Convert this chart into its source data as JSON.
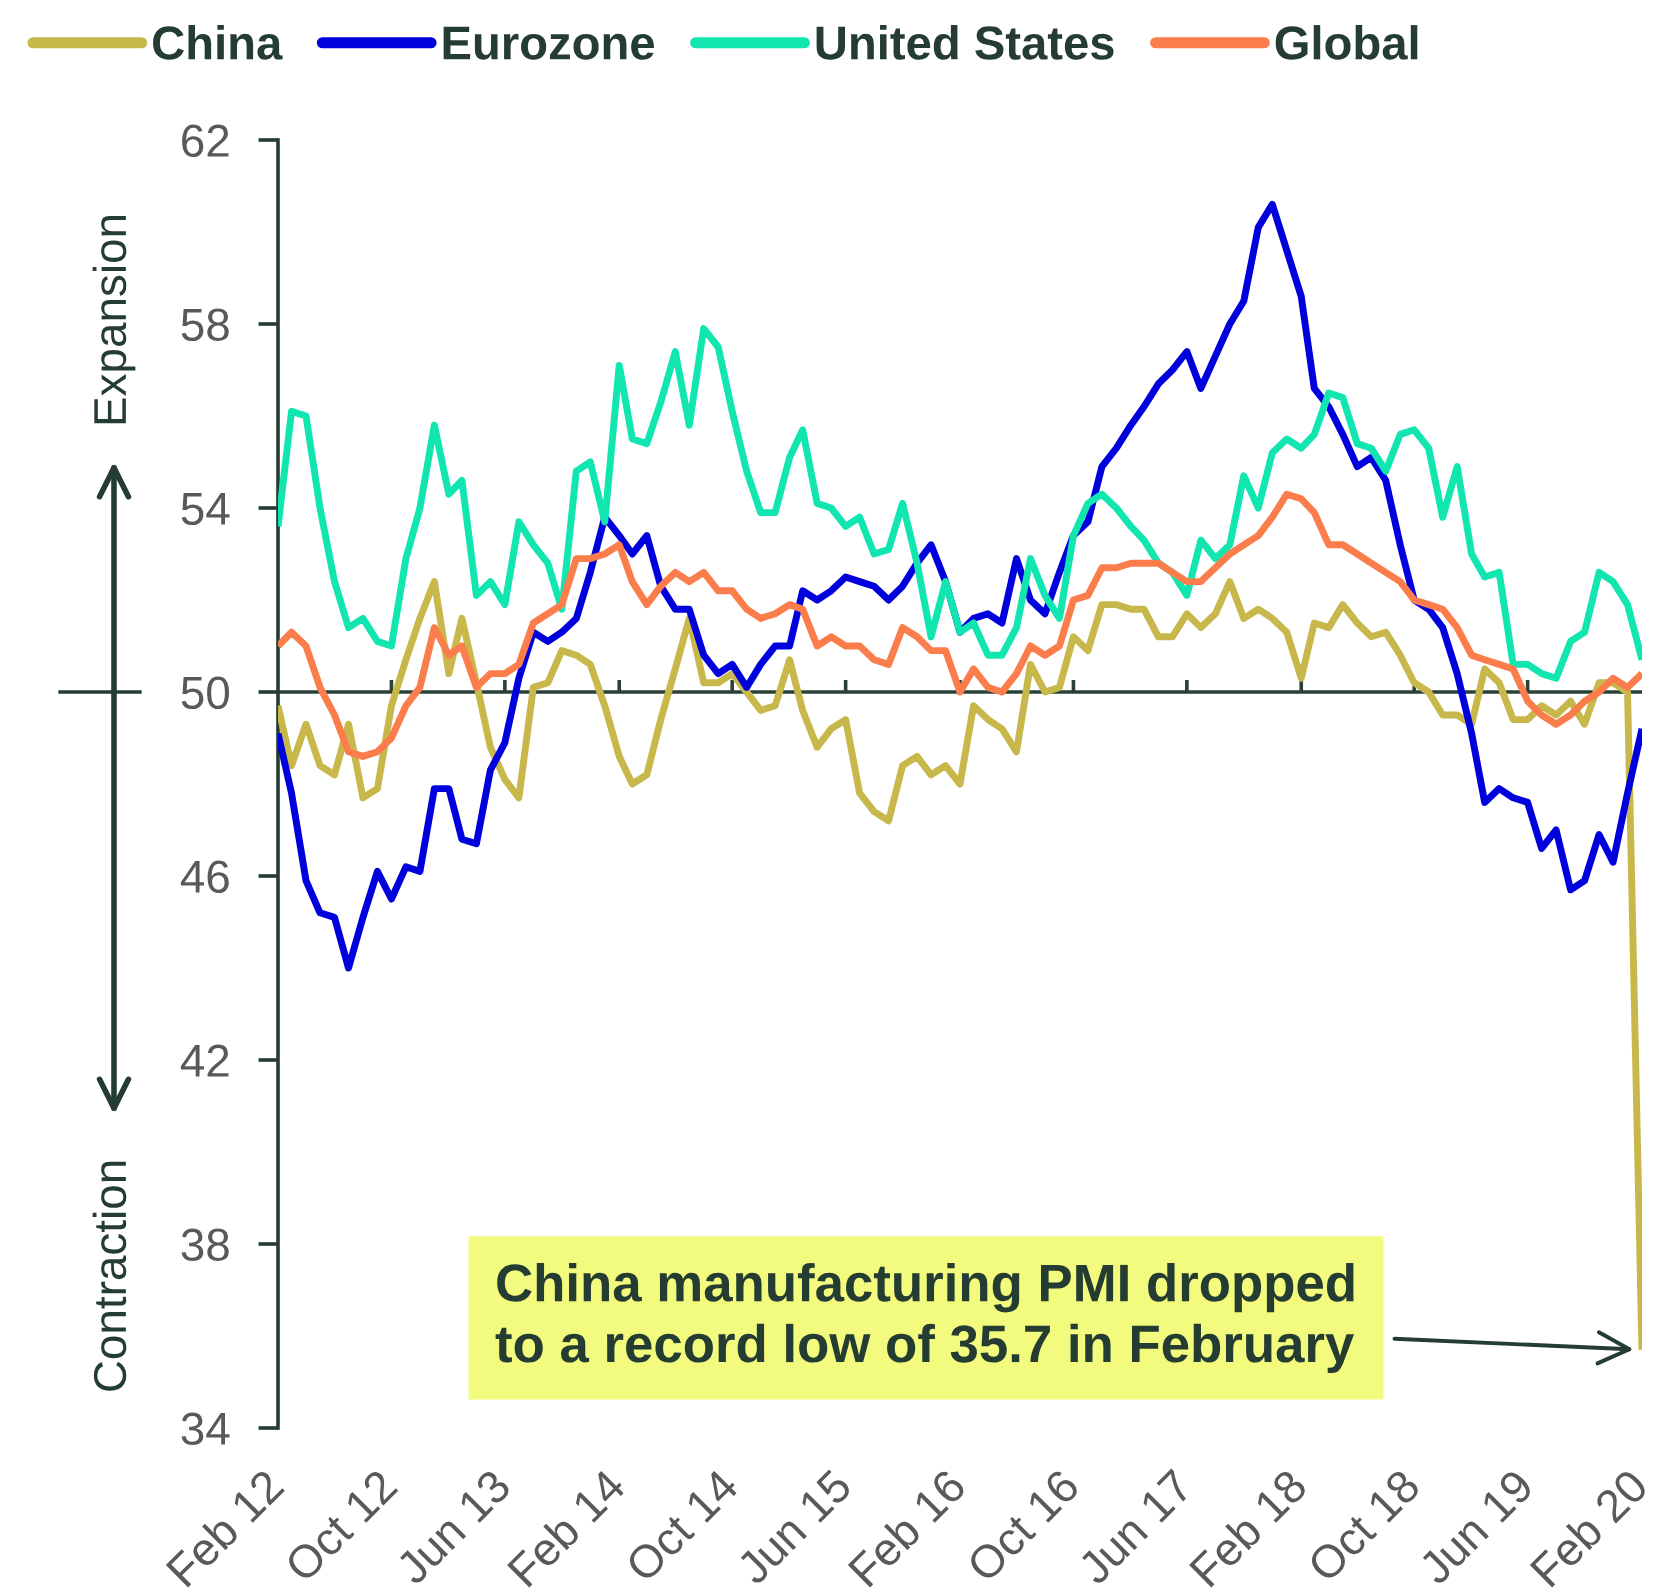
{
  "chart_data": {
    "type": "line",
    "x": [
      "2012-02",
      "2012-03",
      "2012-04",
      "2012-05",
      "2012-06",
      "2012-07",
      "2012-08",
      "2012-09",
      "2012-10",
      "2012-11",
      "2012-12",
      "2013-01",
      "2013-02",
      "2013-03",
      "2013-04",
      "2013-05",
      "2013-06",
      "2013-07",
      "2013-08",
      "2013-09",
      "2013-10",
      "2013-11",
      "2013-12",
      "2014-01",
      "2014-02",
      "2014-03",
      "2014-04",
      "2014-05",
      "2014-06",
      "2014-07",
      "2014-08",
      "2014-09",
      "2014-10",
      "2014-11",
      "2014-12",
      "2015-01",
      "2015-02",
      "2015-03",
      "2015-04",
      "2015-05",
      "2015-06",
      "2015-07",
      "2015-08",
      "2015-09",
      "2015-10",
      "2015-11",
      "2015-12",
      "2016-01",
      "2016-02",
      "2016-03",
      "2016-04",
      "2016-05",
      "2016-06",
      "2016-07",
      "2016-08",
      "2016-09",
      "2016-10",
      "2016-11",
      "2016-12",
      "2017-01",
      "2017-02",
      "2017-03",
      "2017-04",
      "2017-05",
      "2017-06",
      "2017-07",
      "2017-08",
      "2017-09",
      "2017-10",
      "2017-11",
      "2017-12",
      "2018-01",
      "2018-02",
      "2018-03",
      "2018-04",
      "2018-05",
      "2018-06",
      "2018-07",
      "2018-08",
      "2018-09",
      "2018-10",
      "2018-11",
      "2018-12",
      "2019-01",
      "2019-02",
      "2019-03",
      "2019-04",
      "2019-05",
      "2019-06",
      "2019-07",
      "2019-08",
      "2019-09",
      "2019-10",
      "2019-11",
      "2019-12",
      "2020-01",
      "2020-02"
    ],
    "xlim": [
      "2012-02",
      "2020-02"
    ],
    "xticks": [
      {
        "value": "2012-02",
        "label": "Feb 12"
      },
      {
        "value": "2012-10",
        "label": "Oct 12"
      },
      {
        "value": "2013-06",
        "label": "Jun 13"
      },
      {
        "value": "2014-02",
        "label": "Feb 14"
      },
      {
        "value": "2014-10",
        "label": "Oct 14"
      },
      {
        "value": "2015-06",
        "label": "Jun 15"
      },
      {
        "value": "2016-02",
        "label": "Feb 16"
      },
      {
        "value": "2016-10",
        "label": "Oct 16"
      },
      {
        "value": "2017-06",
        "label": "Jun 17"
      },
      {
        "value": "2018-02",
        "label": "Feb 18"
      },
      {
        "value": "2018-10",
        "label": "Oct 18"
      },
      {
        "value": "2019-06",
        "label": "Jun 19"
      },
      {
        "value": "2020-02",
        "label": "Feb 20"
      }
    ],
    "ylim": [
      34,
      62
    ],
    "yticks": [
      34,
      38,
      42,
      46,
      50,
      54,
      58,
      62
    ],
    "series": [
      {
        "name": "China",
        "color": "#c8b84b",
        "values": [
          49.7,
          48.4,
          49.3,
          48.4,
          48.2,
          49.3,
          47.7,
          47.9,
          49.7,
          50.7,
          51.6,
          52.4,
          50.4,
          51.6,
          50.2,
          48.8,
          48.1,
          47.7,
          50.1,
          50.2,
          50.9,
          50.8,
          50.6,
          49.7,
          48.6,
          48.0,
          48.2,
          49.4,
          50.5,
          51.6,
          50.2,
          50.2,
          50.4,
          50.0,
          49.6,
          49.7,
          50.7,
          49.6,
          48.8,
          49.2,
          49.4,
          47.8,
          47.4,
          47.2,
          48.4,
          48.6,
          48.2,
          48.4,
          48.0,
          49.7,
          49.4,
          49.2,
          48.7,
          50.6,
          50.0,
          50.1,
          51.2,
          50.9,
          51.9,
          51.9,
          51.8,
          51.8,
          51.2,
          51.2,
          51.7,
          51.4,
          51.7,
          52.4,
          51.6,
          51.8,
          51.6,
          51.3,
          50.3,
          51.5,
          51.4,
          51.9,
          51.5,
          51.2,
          51.3,
          50.8,
          50.2,
          50.0,
          49.5,
          49.5,
          49.3,
          50.5,
          50.2,
          49.4,
          49.4,
          49.7,
          49.5,
          49.8,
          49.3,
          50.2,
          50.2,
          50.0,
          35.7
        ]
      },
      {
        "name": "Eurozone",
        "color": "#0000dd",
        "values": [
          49.1,
          47.8,
          45.9,
          45.2,
          45.1,
          44.0,
          45.1,
          46.1,
          45.5,
          46.2,
          46.1,
          47.9,
          47.9,
          46.8,
          46.7,
          48.3,
          48.9,
          50.3,
          51.3,
          51.1,
          51.3,
          51.6,
          52.6,
          53.8,
          53.4,
          53.0,
          53.4,
          52.3,
          51.8,
          51.8,
          50.8,
          50.4,
          50.6,
          50.1,
          50.6,
          51.0,
          51.0,
          52.2,
          52.0,
          52.2,
          52.5,
          52.4,
          52.3,
          52.0,
          52.3,
          52.8,
          53.2,
          52.4,
          51.3,
          51.6,
          51.7,
          51.5,
          52.9,
          52.0,
          51.7,
          52.6,
          53.4,
          53.7,
          54.9,
          55.3,
          55.8,
          56.2,
          56.7,
          57.0,
          57.4,
          56.6,
          57.3,
          58.0,
          58.5,
          60.1,
          60.6,
          59.6,
          58.6,
          56.6,
          56.2,
          55.6,
          54.9,
          55.1,
          54.6,
          53.2,
          52.0,
          51.8,
          51.4,
          50.4,
          49.1,
          47.6,
          47.9,
          47.7,
          47.6,
          46.6,
          47.0,
          45.7,
          45.9,
          46.9,
          46.3,
          47.8,
          49.2
        ]
      },
      {
        "name": "United States",
        "color": "#12e6b0",
        "values": [
          53.6,
          56.1,
          56.0,
          54.0,
          52.4,
          51.4,
          51.6,
          51.1,
          51.0,
          52.9,
          54.0,
          55.8,
          54.3,
          54.6,
          52.1,
          52.4,
          51.9,
          53.7,
          53.2,
          52.8,
          51.8,
          54.8,
          55.0,
          53.7,
          57.1,
          55.5,
          55.4,
          56.3,
          57.4,
          55.8,
          57.9,
          57.5,
          56.1,
          54.8,
          53.9,
          53.9,
          55.1,
          55.7,
          54.1,
          54.0,
          53.6,
          53.8,
          53.0,
          53.1,
          54.1,
          52.8,
          51.2,
          52.4,
          51.3,
          51.5,
          50.8,
          50.8,
          51.4,
          52.9,
          52.1,
          51.6,
          53.4,
          54.1,
          54.3,
          54.0,
          53.6,
          53.3,
          52.8,
          52.6,
          52.1,
          53.3,
          52.9,
          53.2,
          54.7,
          54.0,
          55.2,
          55.5,
          55.3,
          55.6,
          56.5,
          56.4,
          55.4,
          55.3,
          54.8,
          55.6,
          55.7,
          55.3,
          53.8,
          54.9,
          53.0,
          52.5,
          52.6,
          50.6,
          50.6,
          50.4,
          50.3,
          51.1,
          51.3,
          52.6,
          52.4,
          51.9,
          50.7
        ]
      },
      {
        "name": "Global",
        "color": "#fb7d4c",
        "values": [
          51.0,
          51.3,
          51.0,
          50.1,
          49.5,
          48.7,
          48.6,
          48.7,
          49.0,
          49.7,
          50.1,
          51.4,
          50.8,
          51.0,
          50.1,
          50.4,
          50.4,
          50.6,
          51.5,
          51.7,
          51.9,
          52.9,
          52.9,
          53.0,
          53.2,
          52.4,
          51.9,
          52.3,
          52.6,
          52.4,
          52.6,
          52.2,
          52.2,
          51.8,
          51.6,
          51.7,
          51.9,
          51.8,
          51.0,
          51.2,
          51.0,
          51.0,
          50.7,
          50.6,
          51.4,
          51.2,
          50.9,
          50.9,
          50.0,
          50.5,
          50.1,
          50.0,
          50.4,
          51.0,
          50.8,
          51.0,
          52.0,
          52.1,
          52.7,
          52.7,
          52.8,
          52.8,
          52.8,
          52.6,
          52.4,
          52.4,
          52.7,
          53.0,
          53.2,
          53.4,
          53.8,
          54.3,
          54.2,
          53.9,
          53.2,
          53.2,
          53.0,
          52.8,
          52.6,
          52.4,
          52.0,
          51.9,
          51.8,
          51.4,
          50.8,
          50.7,
          50.6,
          50.5,
          49.8,
          49.5,
          49.3,
          49.5,
          49.8,
          50.0,
          50.3,
          50.1,
          50.4
        ]
      }
    ],
    "ref_lines": [
      {
        "axis": "y",
        "value": 50,
        "color": "#2a4137"
      }
    ],
    "legend": "top",
    "annotations": [
      "Expansion",
      "Contraction",
      {
        "text": "China manufacturing PMI dropped\nto a record low of 35.7 in February",
        "x": "2020-02",
        "y": 35.7
      }
    ]
  }
}
